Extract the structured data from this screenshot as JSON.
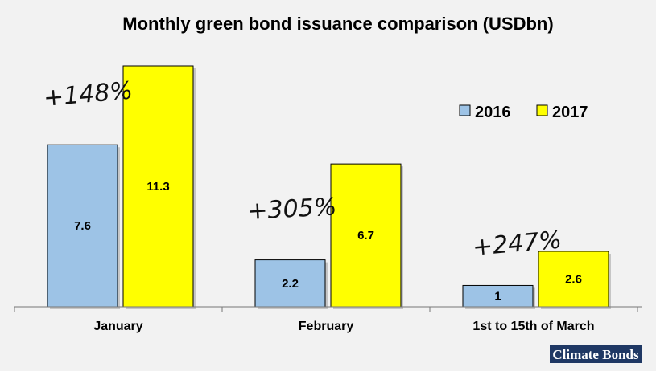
{
  "chart_data": {
    "type": "bar",
    "title": "Monthly green bond issuance comparison (USDbn)",
    "categories": [
      "January",
      "February",
      "1st to 15th of March"
    ],
    "series": [
      {
        "name": "2016",
        "values": [
          7.6,
          2.2,
          1
        ],
        "labels": [
          "7.6",
          "2.2",
          "1"
        ]
      },
      {
        "name": "2017",
        "values": [
          11.3,
          6.7,
          2.6
        ],
        "labels": [
          "11.3",
          "6.7",
          "2.6"
        ]
      }
    ],
    "annotations": [
      "+148%",
      "+305%",
      "+247%"
    ],
    "ylim": [
      0,
      11.3
    ],
    "grid": false,
    "legend_position": "right",
    "colors": {
      "2016": "#9dc3e6",
      "2017": "#ffff00",
      "background": "#f2f2f2",
      "bar_stroke": "#000000"
    }
  },
  "logo": {
    "text": "Climate Bonds",
    "color": "#1f3864"
  }
}
